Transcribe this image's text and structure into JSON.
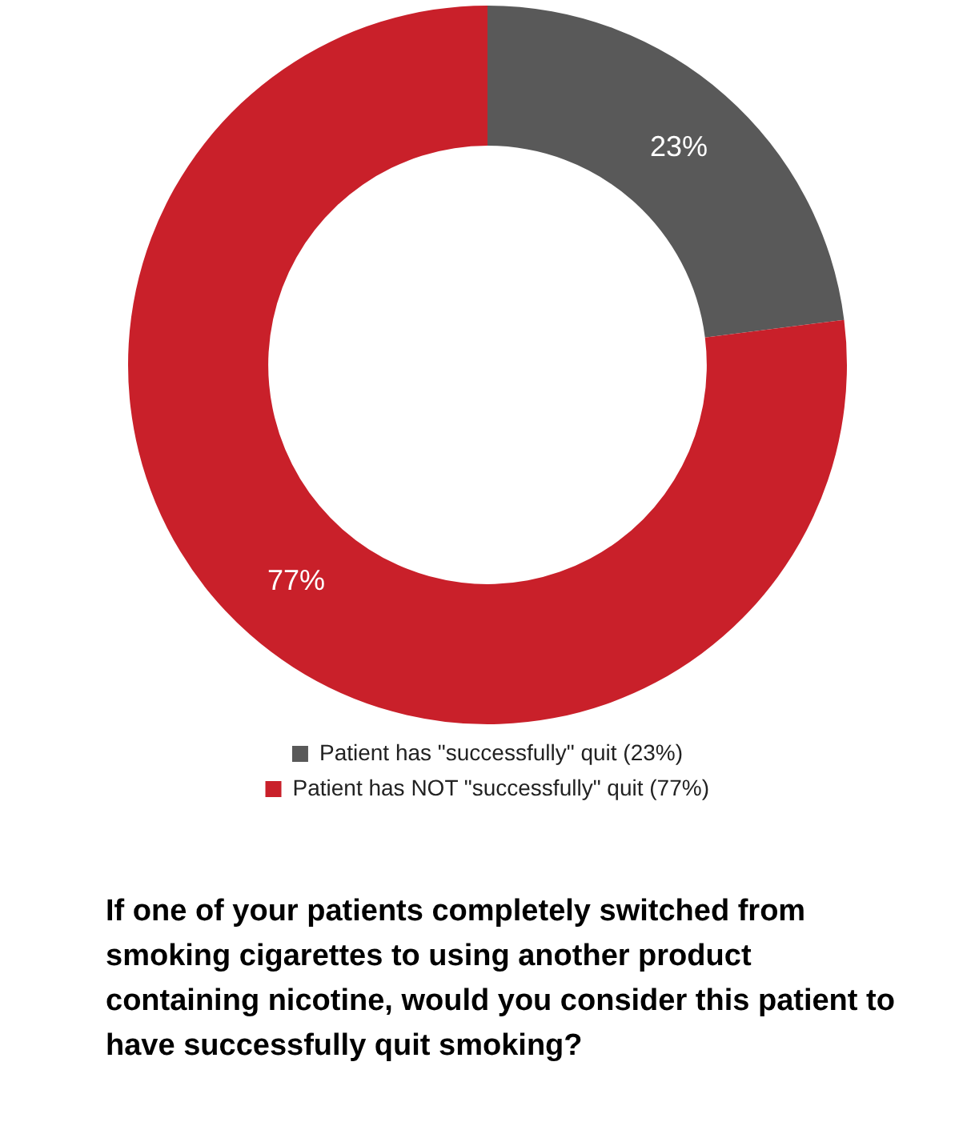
{
  "chart_data": {
    "type": "donut",
    "title": "If one of your patients completely switched from smoking cigarettes to using another product containing nicotine, would you consider this patient to have successfully quit smoking?",
    "categories": [
      "Patient has \"successfully\" quit (23%)",
      "Patient has NOT \"successfully\" quit (77%)"
    ],
    "values": [
      23,
      77
    ],
    "colors": [
      "#595959",
      "#c9202a"
    ],
    "value_labels": [
      "23%",
      "77%"
    ],
    "legend": "bottom"
  }
}
